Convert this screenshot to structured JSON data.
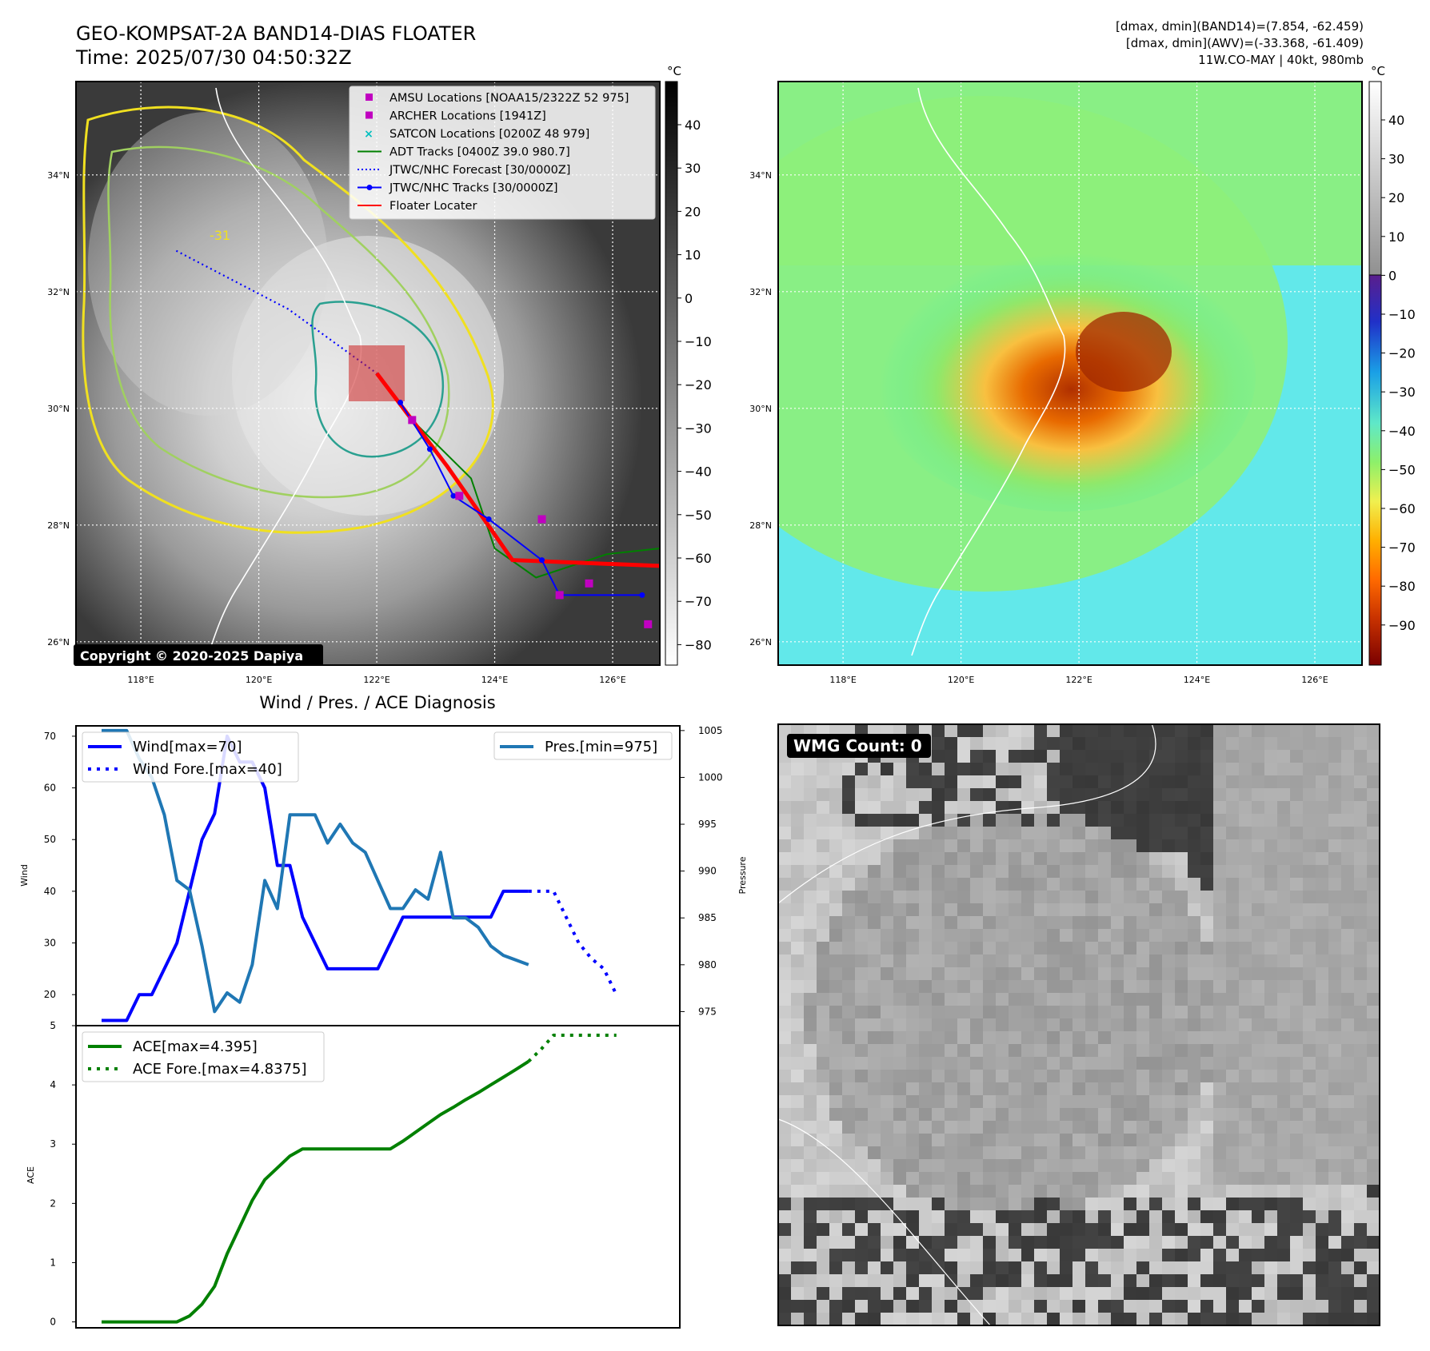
{
  "header": {
    "title": "GEO-KOMPSAT-2A BAND14-DIAS FLOATER",
    "time": "Time: 2025/07/30 04:50:32Z",
    "stats": [
      "[dmax, dmin](BAND14)=(7.854, -62.459)",
      "[dmax, dmin](AWV)=(-33.368, -61.409)",
      "11W.CO-MAY | 40kt, 980mb"
    ]
  },
  "map": {
    "lat_labels": [
      "34°N",
      "32°N",
      "30°N",
      "28°N",
      "26°N"
    ],
    "lon_labels": [
      "118°E",
      "120°E",
      "122°E",
      "124°E",
      "126°E"
    ],
    "copyright": "Copyright © 2020-2025 Dapiya",
    "contour_label": "-31",
    "legend": [
      {
        "label": "AMSU Locations [NOAA15/2322Z 52 975]",
        "color": "#c000c0",
        "marker": "square"
      },
      {
        "label": "ARCHER Locations [1941Z]",
        "color": "#c000c0",
        "marker": "square"
      },
      {
        "label": "SATCON Locations [0200Z 48 979]",
        "color": "#00bfbf",
        "marker": "x"
      },
      {
        "label": "ADT Tracks [0400Z 39.0 980.7]",
        "color": "#008000",
        "marker": "line"
      },
      {
        "label": "JTWC/NHC Forecast [30/0000Z]",
        "color": "#0000ff",
        "marker": "dotted"
      },
      {
        "label": "JTWC/NHC Tracks [30/0000Z]",
        "color": "#0000ff",
        "marker": "line-dot"
      },
      {
        "label": "Floater Locater",
        "color": "#ff0000",
        "marker": "line"
      }
    ],
    "extent": {
      "lon": [
        116.9,
        126.8
      ],
      "lat": [
        25.6,
        35.6
      ]
    },
    "jtwc_forecast": [
      [
        118.6,
        32.7
      ],
      [
        120.5,
        31.7
      ],
      [
        122.0,
        30.6
      ]
    ],
    "jtwc_track": [
      [
        122.4,
        30.1
      ],
      [
        122.9,
        29.3
      ],
      [
        123.3,
        28.5
      ],
      [
        123.9,
        28.1
      ],
      [
        124.8,
        27.4
      ],
      [
        125.1,
        26.8
      ],
      [
        126.5,
        26.8
      ]
    ],
    "adt_track": [
      [
        122.6,
        29.8
      ],
      [
        123.6,
        28.8
      ],
      [
        124.0,
        27.6
      ],
      [
        124.7,
        27.1
      ],
      [
        125.9,
        27.5
      ],
      [
        126.8,
        27.6
      ]
    ],
    "amsu_points": [
      [
        122.6,
        29.8
      ],
      [
        123.4,
        28.5
      ],
      [
        124.8,
        28.1
      ],
      [
        125.1,
        26.8
      ],
      [
        125.6,
        27.0
      ],
      [
        126.6,
        26.3
      ]
    ]
  },
  "colorbar_gray": {
    "unit": "°C",
    "ticks": [
      "40",
      "30",
      "20",
      "10",
      "0",
      "−10",
      "−20",
      "−30",
      "−40",
      "−50",
      "−60",
      "−70",
      "−80"
    ]
  },
  "colorbar_color": {
    "unit": "°C",
    "ticks": [
      "40",
      "30",
      "20",
      "10",
      "0",
      "−10",
      "−20",
      "−30",
      "−40",
      "−50",
      "−60",
      "−70",
      "−80",
      "−90"
    ]
  },
  "chart_data": [
    {
      "type": "line",
      "title": "Wind / Pres. / ACE Diagnosis",
      "ylabel": "Wind",
      "ylabel2": "Pressure",
      "ylim": [
        14,
        72
      ],
      "y2lim": [
        973.5,
        1005.5
      ],
      "yticks": [
        "70",
        "60",
        "50",
        "40",
        "30",
        "20"
      ],
      "y2ticks": [
        "1005",
        "1000",
        "995",
        "990",
        "985",
        "980",
        "975"
      ],
      "legend_left": [
        "Wind[max=70]",
        "Wind Fore.[max=40]"
      ],
      "legend_right": [
        "Pres.[min=975]"
      ],
      "series": [
        {
          "name": "Wind[max=70]",
          "color": "#0000ff",
          "style": "solid",
          "x": [
            0,
            2,
            3,
            4,
            5,
            6,
            7,
            8,
            9,
            10,
            11,
            12,
            13,
            14,
            15,
            16,
            17,
            18,
            19,
            20,
            21,
            22,
            23,
            24,
            25,
            26,
            27,
            28,
            29,
            30,
            31,
            32,
            33,
            34
          ],
          "values": [
            15,
            15,
            20,
            20,
            25,
            30,
            40,
            50,
            55,
            70,
            65,
            65,
            60,
            45,
            45,
            35,
            30,
            25,
            25,
            25,
            25,
            25,
            30,
            35,
            35,
            35,
            35,
            35,
            35,
            35,
            35,
            40,
            40,
            40
          ]
        },
        {
          "name": "Wind Fore.[max=40]",
          "color": "#0000ff",
          "style": "dotted",
          "x": [
            34,
            35,
            36,
            37,
            38,
            39,
            40,
            41
          ],
          "values": [
            40,
            40,
            40,
            35,
            30,
            27,
            25,
            20
          ]
        },
        {
          "name": "Pres.[min=975]",
          "color": "#1f77b4",
          "style": "solid",
          "x": [
            0,
            1,
            2,
            3,
            4,
            5,
            6,
            7,
            8,
            9,
            10,
            11,
            12,
            13,
            14,
            15,
            16,
            17,
            18,
            19,
            20,
            21,
            22,
            23,
            24,
            25,
            26,
            27,
            28,
            29,
            30,
            31,
            32,
            34
          ],
          "values": [
            1005,
            1005,
            1005,
            1002,
            1000,
            996,
            989,
            988,
            982,
            975,
            977,
            976,
            980,
            989,
            986,
            996,
            996,
            996,
            993,
            995,
            993,
            992,
            989,
            986,
            986,
            988,
            987,
            992,
            985,
            985,
            984,
            982,
            981,
            980
          ]
        }
      ]
    },
    {
      "type": "line",
      "ylabel": "ACE",
      "ylim": [
        -0.1,
        5.0
      ],
      "yticks": [
        "5",
        "4",
        "3",
        "2",
        "1",
        "0"
      ],
      "legend": [
        "ACE[max=4.395]",
        "ACE Fore.[max=4.8375]"
      ],
      "series": [
        {
          "name": "ACE[max=4.395]",
          "color": "#008000",
          "style": "solid",
          "x": [
            0,
            6,
            7,
            8,
            9,
            10,
            11,
            12,
            13,
            14,
            15,
            16,
            17,
            18,
            19,
            20,
            21,
            22,
            23,
            24,
            25,
            26,
            27,
            28,
            29,
            30,
            31,
            32,
            33,
            34
          ],
          "values": [
            0,
            0,
            0.1,
            0.3,
            0.6,
            1.15,
            1.6,
            2.05,
            2.4,
            2.6,
            2.8,
            2.92,
            2.92,
            2.92,
            2.92,
            2.92,
            2.92,
            2.92,
            2.92,
            3.05,
            3.2,
            3.35,
            3.5,
            3.62,
            3.75,
            3.87,
            4.0,
            4.13,
            4.26,
            4.395
          ]
        },
        {
          "name": "ACE Fore.[max=4.8375]",
          "color": "#008000",
          "style": "dotted",
          "x": [
            34,
            35,
            36,
            37,
            38,
            39,
            40,
            41
          ],
          "values": [
            4.395,
            4.6,
            4.8375,
            4.8375,
            4.8375,
            4.8375,
            4.8375,
            4.8375
          ]
        }
      ]
    }
  ],
  "wmg": {
    "label": "WMG Count: 0"
  }
}
